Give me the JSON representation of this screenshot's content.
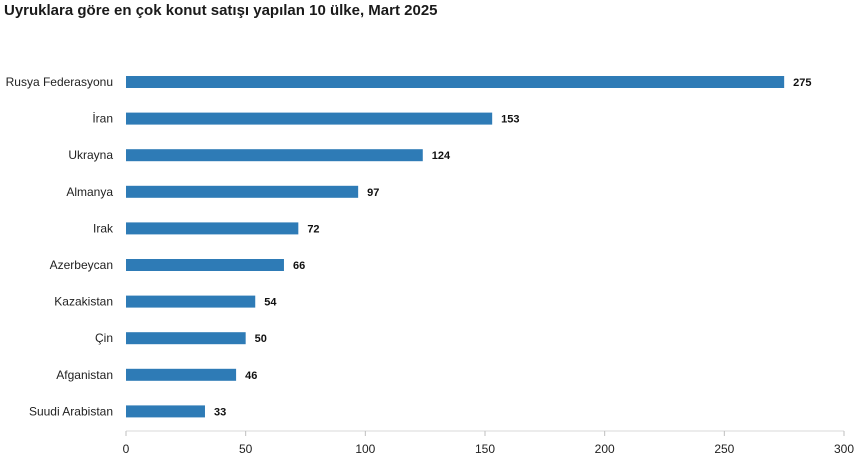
{
  "chart_data": {
    "type": "bar",
    "orientation": "horizontal",
    "title": "Uyruklara göre en çok konut satışı yapılan 10 ülke, Mart 2025",
    "categories": [
      "Rusya Federasyonu",
      "İran",
      "Ukrayna",
      "Almanya",
      "Irak",
      "Azerbeycan",
      "Kazakistan",
      "Çin",
      "Afganistan",
      "Suudi Arabistan"
    ],
    "values": [
      275,
      153,
      124,
      97,
      72,
      66,
      54,
      50,
      46,
      33
    ],
    "xlim": [
      0,
      300
    ],
    "xticks": [
      0,
      50,
      100,
      150,
      200,
      250,
      300
    ],
    "xlabel": "",
    "ylabel": "",
    "bar_color": "#2e7bb6",
    "grid": false,
    "legend": "none",
    "data_labels": true
  }
}
